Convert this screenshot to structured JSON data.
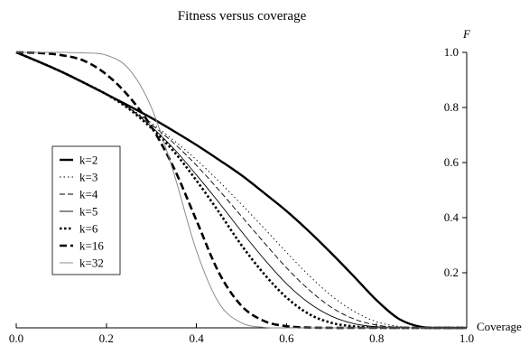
{
  "chart_data": {
    "type": "line",
    "title": "Fitness versus coverage",
    "xlabel": "Coverage",
    "ylabel": "F",
    "xlim": [
      0.0,
      1.0
    ],
    "ylim": [
      0.0,
      1.0
    ],
    "xticks": [
      "0.0",
      "0.2",
      "0.4",
      "0.6",
      "0.8",
      "1.0"
    ],
    "yticks": [
      "0.2",
      "0.4",
      "0.6",
      "0.8",
      "1.0"
    ],
    "x": [
      0.0,
      0.05,
      0.1,
      0.15,
      0.2,
      0.25,
      0.3,
      0.35,
      0.4,
      0.45,
      0.5,
      0.55,
      0.6,
      0.65,
      0.7,
      0.75,
      0.8,
      0.85,
      0.9,
      0.95,
      1.0
    ],
    "series": [
      {
        "name": "k=2",
        "values": [
          1.0,
          0.966,
          0.93,
          0.89,
          0.848,
          0.806,
          0.762,
          0.714,
          0.664,
          0.61,
          0.554,
          0.49,
          0.424,
          0.35,
          0.27,
          0.186,
          0.1,
          0.032,
          0.003,
          0.0,
          0.0
        ]
      },
      {
        "name": "k=3",
        "values": [
          1.0,
          0.966,
          0.93,
          0.89,
          0.848,
          0.8,
          0.744,
          0.68,
          0.61,
          0.532,
          0.448,
          0.362,
          0.274,
          0.19,
          0.116,
          0.06,
          0.022,
          0.005,
          0.0,
          0.0,
          0.0
        ]
      },
      {
        "name": "k=4",
        "values": [
          1.0,
          0.966,
          0.93,
          0.89,
          0.848,
          0.798,
          0.738,
          0.67,
          0.59,
          0.5,
          0.405,
          0.31,
          0.218,
          0.138,
          0.074,
          0.032,
          0.01,
          0.002,
          0.0,
          0.0,
          0.0
        ]
      },
      {
        "name": "k=5",
        "values": [
          1.0,
          0.966,
          0.93,
          0.89,
          0.848,
          0.798,
          0.73,
          0.65,
          0.555,
          0.455,
          0.35,
          0.25,
          0.16,
          0.09,
          0.042,
          0.015,
          0.004,
          0.0,
          0.0,
          0.0,
          0.0
        ]
      },
      {
        "name": "k=6",
        "values": [
          1.0,
          0.966,
          0.93,
          0.89,
          0.848,
          0.795,
          0.725,
          0.64,
          0.535,
          0.42,
          0.3,
          0.196,
          0.11,
          0.05,
          0.018,
          0.005,
          0.001,
          0.0,
          0.0,
          0.0,
          0.0
        ]
      },
      {
        "name": "k=16",
        "values": [
          1.0,
          0.998,
          0.99,
          0.97,
          0.92,
          0.84,
          0.73,
          0.58,
          0.39,
          0.2,
          0.08,
          0.025,
          0.006,
          0.001,
          0.0,
          0.0,
          0.0,
          0.0,
          0.0,
          0.0,
          0.0
        ]
      },
      {
        "name": "k=32",
        "values": [
          1.0,
          1.0,
          1.0,
          0.998,
          0.99,
          0.94,
          0.8,
          0.56,
          0.28,
          0.09,
          0.018,
          0.002,
          0.0,
          0.0,
          0.0,
          0.0,
          0.0,
          0.0,
          0.0,
          0.0,
          0.0
        ]
      }
    ],
    "legend_position": "left",
    "grid": false
  }
}
